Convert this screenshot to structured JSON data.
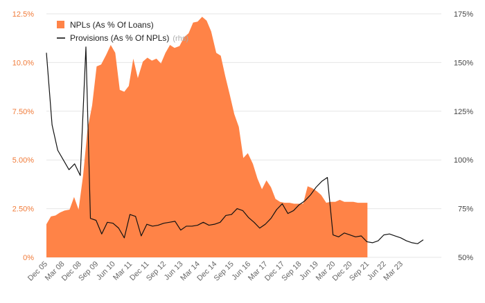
{
  "chart_data": {
    "type": "area",
    "title": "",
    "xlabel": "",
    "ylabel": "",
    "colors": {
      "area": "#ff8347",
      "line": "#111111",
      "left_axis": "#f07a38",
      "right_axis": "#444444",
      "grid": "#e6e6e6"
    },
    "legend": {
      "placement": "top-left",
      "entries": [
        {
          "name": "NPLs (As % Of Loans)",
          "suffix": ""
        },
        {
          "name": "Provisions (As % Of NPLs)",
          "suffix": "(rhs)"
        }
      ]
    },
    "y_left": {
      "ylim": [
        0,
        12.5
      ],
      "ticks": [
        0,
        2.5,
        5,
        7.5,
        10,
        12.5
      ],
      "tick_labels": [
        "0%",
        "2.50%",
        "5.00%",
        "7.50%",
        "10.0%",
        "12.5%"
      ]
    },
    "y_right": {
      "ylim": [
        50,
        175
      ],
      "ticks": [
        50,
        75,
        100,
        125,
        150,
        175
      ],
      "tick_labels": [
        "50%",
        "75%",
        "100%",
        "125%",
        "150%",
        "175%"
      ]
    },
    "x_range": [
      0,
      70
    ],
    "x_ticks": [
      {
        "x": 0,
        "label": "Dec 05"
      },
      {
        "x": 3,
        "label": "Mar 08"
      },
      {
        "x": 6,
        "label": "Dec 08"
      },
      {
        "x": 9,
        "label": "Sep 09"
      },
      {
        "x": 12,
        "label": "Jun 10"
      },
      {
        "x": 15,
        "label": "Mar 11"
      },
      {
        "x": 18,
        "label": "Dec 11"
      },
      {
        "x": 21,
        "label": "Sep 12"
      },
      {
        "x": 24,
        "label": "Jun 13"
      },
      {
        "x": 27,
        "label": "Mar 14"
      },
      {
        "x": 30,
        "label": "Dec 14"
      },
      {
        "x": 33,
        "label": "Sep 15"
      },
      {
        "x": 36,
        "label": "Jun 16"
      },
      {
        "x": 39,
        "label": "Mar 17"
      },
      {
        "x": 42,
        "label": "Dec 17"
      },
      {
        "x": 45,
        "label": "Sep 18"
      },
      {
        "x": 48,
        "label": "Jun 19"
      },
      {
        "x": 51,
        "label": "Mar 20"
      },
      {
        "x": 54,
        "label": "Dec 20"
      },
      {
        "x": 57,
        "label": "Sep 21"
      },
      {
        "x": 60,
        "label": "Jun 22"
      },
      {
        "x": 63,
        "label": "Mar 23"
      }
    ],
    "series": [
      {
        "name": "NPLs (As % Of Loans)",
        "axis": "left",
        "kind": "area",
        "points": [
          [
            0,
            1.7
          ],
          [
            0.8,
            2.1
          ],
          [
            1.6,
            2.15
          ],
          [
            2.4,
            2.3
          ],
          [
            3.2,
            2.4
          ],
          [
            4.1,
            2.45
          ],
          [
            4.9,
            3.1
          ],
          [
            5.7,
            2.45
          ],
          [
            6.5,
            4.2
          ],
          [
            7.3,
            6.6
          ],
          [
            8.1,
            7.8
          ],
          [
            8.9,
            9.8
          ],
          [
            9.7,
            9.9
          ],
          [
            10.6,
            10.4
          ],
          [
            11.4,
            10.9
          ],
          [
            12.2,
            10.5
          ],
          [
            13,
            8.6
          ],
          [
            13.8,
            8.5
          ],
          [
            14.6,
            8.8
          ],
          [
            15.4,
            10.2
          ],
          [
            16.2,
            9.2
          ],
          [
            17.1,
            10.05
          ],
          [
            17.9,
            10.25
          ],
          [
            18.7,
            10.1
          ],
          [
            19.5,
            10.2
          ],
          [
            20.3,
            9.95
          ],
          [
            21.1,
            10.5
          ],
          [
            21.9,
            10.9
          ],
          [
            22.7,
            10.75
          ],
          [
            23.6,
            10.85
          ],
          [
            24.4,
            11.3
          ],
          [
            25.2,
            11.5
          ],
          [
            26,
            12.05
          ],
          [
            26.8,
            12.1
          ],
          [
            27.6,
            12.35
          ],
          [
            28.4,
            12.15
          ],
          [
            29.2,
            11.6
          ],
          [
            30.1,
            10.5
          ],
          [
            30.9,
            10.35
          ],
          [
            31.7,
            9.3
          ],
          [
            32.5,
            8.35
          ],
          [
            33.3,
            7.35
          ],
          [
            34.1,
            6.7
          ],
          [
            34.9,
            5.1
          ],
          [
            35.7,
            5.35
          ],
          [
            36.6,
            4.8
          ],
          [
            37.4,
            4.05
          ],
          [
            38.2,
            3.5
          ],
          [
            39,
            3.95
          ],
          [
            39.8,
            3.6
          ],
          [
            40.6,
            3.0
          ],
          [
            41.4,
            2.85
          ],
          [
            42.2,
            2.8
          ],
          [
            43.1,
            2.8
          ],
          [
            43.9,
            2.75
          ],
          [
            44.7,
            2.75
          ],
          [
            45.5,
            2.75
          ],
          [
            46.3,
            3.65
          ],
          [
            47.1,
            3.55
          ],
          [
            47.9,
            3.4
          ],
          [
            48.7,
            3.2
          ],
          [
            49.6,
            2.8
          ],
          [
            50.4,
            2.85
          ],
          [
            51.2,
            2.85
          ],
          [
            52,
            2.95
          ],
          [
            52.8,
            2.85
          ],
          [
            53.6,
            2.85
          ],
          [
            54.4,
            2.85
          ],
          [
            55.2,
            2.8
          ],
          [
            56.1,
            2.8
          ],
          [
            56.9,
            2.8
          ]
        ]
      },
      {
        "name": "Provisions (As % Of NPLs)",
        "axis": "right",
        "kind": "line",
        "points": [
          [
            0,
            155
          ],
          [
            1,
            118
          ],
          [
            2,
            105
          ],
          [
            3,
            100
          ],
          [
            4,
            95
          ],
          [
            5,
            98
          ],
          [
            6,
            92
          ],
          [
            7,
            158
          ],
          [
            7.8,
            70
          ],
          [
            8.8,
            69
          ],
          [
            9.8,
            62
          ],
          [
            10.8,
            68
          ],
          [
            11.8,
            67.5
          ],
          [
            12.8,
            65
          ],
          [
            13.8,
            60
          ],
          [
            14.8,
            72
          ],
          [
            15.8,
            71
          ],
          [
            16.8,
            61
          ],
          [
            17.8,
            67
          ],
          [
            18.8,
            66
          ],
          [
            19.8,
            66.5
          ],
          [
            20.8,
            67.5
          ],
          [
            21.8,
            68
          ],
          [
            22.8,
            68.5
          ],
          [
            23.8,
            64
          ],
          [
            24.8,
            66
          ],
          [
            25.8,
            66
          ],
          [
            26.8,
            66.5
          ],
          [
            27.8,
            68
          ],
          [
            28.8,
            66.5
          ],
          [
            29.8,
            67
          ],
          [
            30.8,
            68
          ],
          [
            31.8,
            71.5
          ],
          [
            32.8,
            72
          ],
          [
            33.8,
            75
          ],
          [
            34.8,
            74
          ],
          [
            35.8,
            70.5
          ],
          [
            36.8,
            68
          ],
          [
            37.8,
            65
          ],
          [
            38.8,
            67
          ],
          [
            39.8,
            70
          ],
          [
            40.8,
            74.5
          ],
          [
            41.8,
            77.5
          ],
          [
            42.8,
            72.5
          ],
          [
            43.8,
            74
          ],
          [
            44.8,
            77
          ],
          [
            45.8,
            79
          ],
          [
            46.8,
            82
          ],
          [
            47.8,
            86
          ],
          [
            48.8,
            89
          ],
          [
            49.8,
            91
          ],
          [
            50.8,
            61.5
          ],
          [
            51.8,
            60.5
          ],
          [
            52.8,
            62.5
          ],
          [
            53.8,
            61.5
          ],
          [
            54.8,
            60.5
          ],
          [
            55.8,
            61
          ],
          [
            56.8,
            58
          ],
          [
            57.8,
            57.5
          ],
          [
            58.8,
            58.5
          ],
          [
            59.8,
            61.5
          ],
          [
            60.8,
            62
          ],
          [
            61.8,
            61
          ],
          [
            62.8,
            60
          ],
          [
            63.8,
            58.5
          ],
          [
            64.8,
            57.5
          ],
          [
            65.8,
            57
          ],
          [
            66.8,
            59
          ]
        ]
      }
    ]
  }
}
